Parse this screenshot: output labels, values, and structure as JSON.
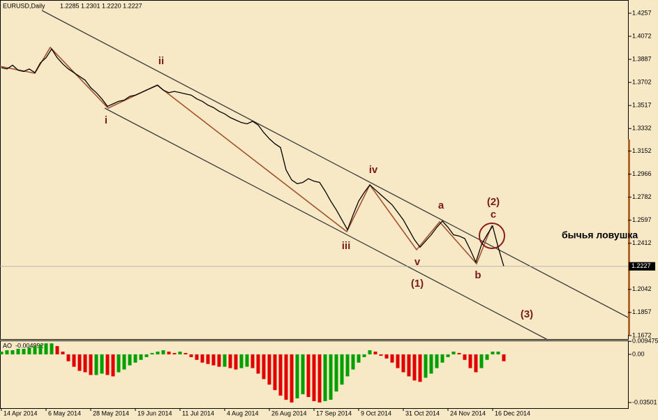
{
  "chart_data": [
    {
      "type": "line",
      "title": "EURUSD,Daily",
      "header_prices": "1.2285 1.2301 1.2220 1.2227",
      "categories": [
        "14 Apr 2014",
        null,
        null,
        null,
        null,
        null,
        null,
        null,
        "6 May 2014",
        null,
        null,
        null,
        null,
        null,
        null,
        null,
        "28 May 2014",
        null,
        null,
        null,
        null,
        null,
        null,
        null,
        "19 Jun 2014",
        null,
        null,
        null,
        null,
        null,
        null,
        null,
        "11 Jul 2014",
        null,
        null,
        null,
        null,
        null,
        null,
        null,
        "4 Aug 2014",
        null,
        null,
        null,
        null,
        null,
        null,
        null,
        "26 Aug 2014",
        null,
        null,
        null,
        null,
        null,
        null,
        null,
        "17 Sep 2014",
        null,
        null,
        null,
        null,
        null,
        null,
        null,
        "9 Oct 2014",
        null,
        null,
        null,
        null,
        null,
        null,
        null,
        "31 Oct 2014",
        null,
        null,
        null,
        null,
        null,
        null,
        null,
        "24 Nov 2014",
        null,
        null,
        null,
        null,
        null,
        null,
        null,
        "16 Dec 2014",
        null,
        null
      ],
      "series": [
        {
          "name": "EURUSD",
          "color": "#000000",
          "values": [
            1.382,
            1.381,
            1.384,
            1.38,
            1.379,
            1.381,
            1.378,
            1.386,
            1.39,
            1.397,
            1.39,
            1.385,
            1.381,
            1.378,
            1.375,
            1.372,
            1.366,
            1.362,
            1.357,
            1.351,
            1.353,
            1.355,
            1.356,
            1.359,
            1.36,
            1.362,
            1.364,
            1.366,
            1.368,
            1.364,
            1.362,
            1.363,
            1.362,
            1.361,
            1.36,
            1.357,
            1.355,
            1.352,
            1.35,
            1.347,
            1.345,
            1.342,
            1.34,
            1.338,
            1.337,
            1.339,
            1.336,
            1.33,
            1.325,
            1.321,
            1.318,
            1.3,
            1.292,
            1.289,
            1.29,
            1.293,
            1.291,
            1.29,
            1.283,
            1.275,
            1.268,
            1.26,
            1.252,
            1.264,
            1.275,
            1.282,
            1.288,
            1.284,
            1.28,
            1.276,
            1.272,
            1.266,
            1.26,
            1.252,
            1.244,
            1.238,
            1.243,
            1.248,
            1.254,
            1.259,
            1.254,
            1.248,
            1.247,
            1.245,
            1.236,
            1.226,
            1.24,
            1.248,
            1.255,
            1.238,
            1.2227
          ]
        }
      ],
      "last_price": 1.2227,
      "ylim": [
        1.1638,
        1.4363
      ],
      "yticks": [
        1.4257,
        1.4072,
        1.3887,
        1.3702,
        1.3517,
        1.3332,
        1.3152,
        1.2966,
        1.2782,
        1.2597,
        1.2412,
        1.2042,
        1.1857,
        1.1672
      ],
      "annotations": [
        "i",
        "ii",
        "iii",
        "iv",
        "v",
        "a",
        "b",
        "c",
        "(1)",
        "(2)",
        "(3)",
        "бычья ловушка"
      ]
    },
    {
      "type": "bar",
      "title": "AO",
      "last_value": -0.004992,
      "up_color": "#00a000",
      "down_color": "#e00000",
      "values": [
        0.002,
        0.003,
        0.003,
        0.004,
        0.004,
        0.005,
        0.006,
        0.007,
        0.008,
        0.008,
        0.006,
        0.002,
        -0.005,
        -0.009,
        -0.012,
        -0.013,
        -0.015,
        -0.015,
        -0.014,
        -0.015,
        -0.016,
        -0.013,
        -0.011,
        -0.008,
        -0.006,
        -0.004,
        -0.002,
        0.001,
        0.002,
        0.003,
        0.002,
        0.001,
        0.002,
        0.001,
        -0.002,
        -0.004,
        -0.006,
        -0.007,
        -0.008,
        -0.009,
        -0.009,
        -0.01,
        -0.011,
        -0.01,
        -0.009,
        -0.01,
        -0.014,
        -0.018,
        -0.022,
        -0.026,
        -0.03,
        -0.033,
        -0.035,
        -0.032,
        -0.029,
        -0.031,
        -0.034,
        -0.035,
        -0.034,
        -0.033,
        -0.027,
        -0.022,
        -0.016,
        -0.011,
        -0.006,
        -0.002,
        0.003,
        0.002,
        -0.001,
        -0.003,
        -0.006,
        -0.01,
        -0.013,
        -0.016,
        -0.019,
        -0.02,
        -0.017,
        -0.014,
        -0.01,
        -0.006,
        -0.002,
        0.002,
        0.001,
        -0.004,
        -0.01,
        -0.013,
        -0.01,
        -0.004,
        0.002,
        0.002,
        -0.004992
      ],
      "ylim": [
        -0.0391,
        0.0101
      ],
      "yticks": [
        0.009475,
        {
          "value": 0,
          "label": "0.00"
        },
        -0.03501
      ]
    }
  ]
}
